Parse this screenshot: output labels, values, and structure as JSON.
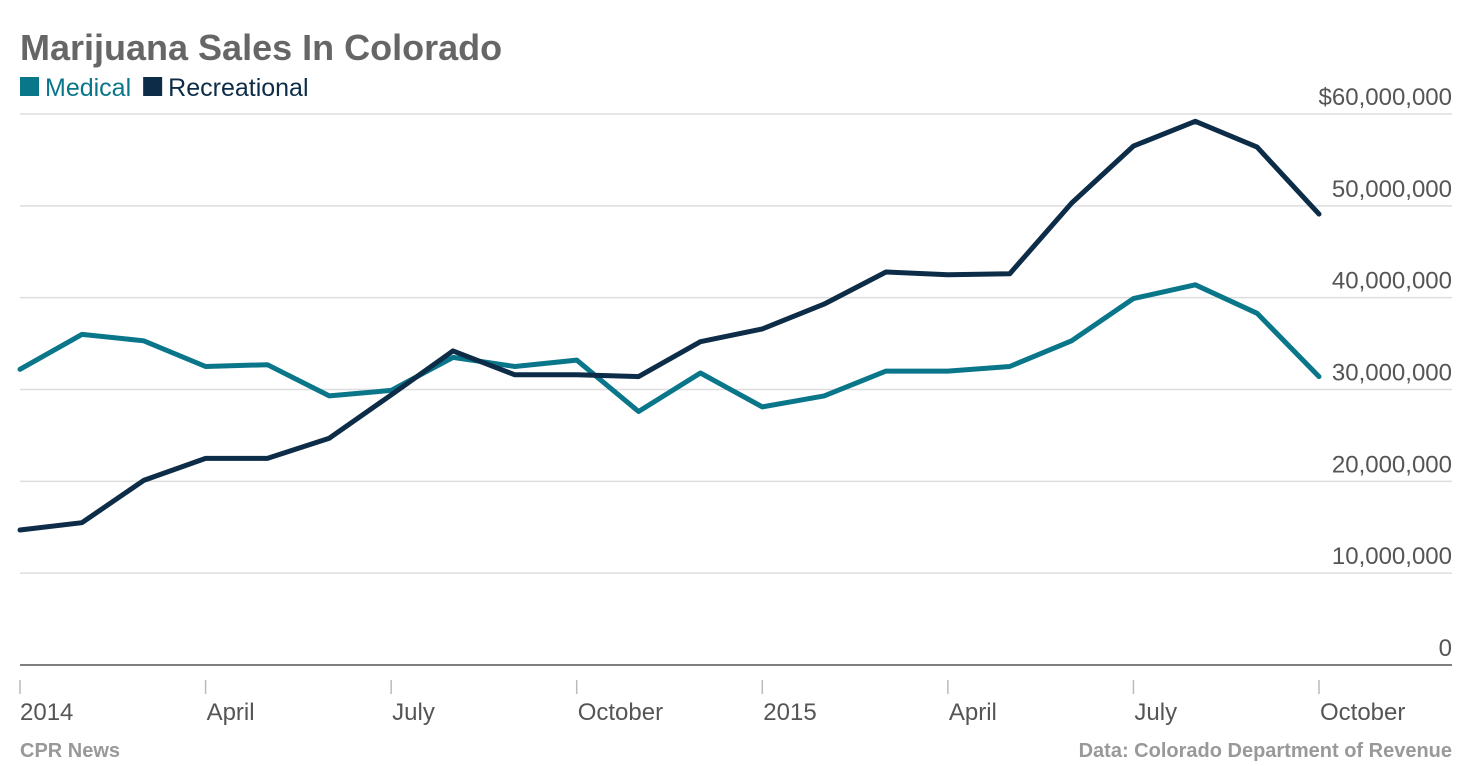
{
  "chart_data": {
    "type": "line",
    "title": "Marijuana Sales In Colorado",
    "source_left": "CPR News",
    "source_right": "Data: Colorado Department of Revenue",
    "xlabel": "",
    "ylabel": "",
    "x": [
      "2014-01",
      "2014-02",
      "2014-03",
      "2014-04",
      "2014-05",
      "2014-06",
      "2014-07",
      "2014-08",
      "2014-09",
      "2014-10",
      "2014-11",
      "2014-12",
      "2015-01",
      "2015-02",
      "2015-03",
      "2015-04",
      "2015-05",
      "2015-06",
      "2015-07",
      "2015-08",
      "2015-09",
      "2015-10"
    ],
    "x_ticks": [
      {
        "x": "2014-01",
        "label": "2014"
      },
      {
        "x": "2014-04",
        "label": "April"
      },
      {
        "x": "2014-07",
        "label": "July"
      },
      {
        "x": "2014-10",
        "label": "October"
      },
      {
        "x": "2015-01",
        "label": "2015"
      },
      {
        "x": "2015-04",
        "label": "April"
      },
      {
        "x": "2015-07",
        "label": "July"
      },
      {
        "x": "2015-10",
        "label": "October"
      }
    ],
    "y_ticks": [
      {
        "value": 0,
        "label": "0"
      },
      {
        "value": 10000000,
        "label": "10,000,000"
      },
      {
        "value": 20000000,
        "label": "20,000,000"
      },
      {
        "value": 30000000,
        "label": "30,000,000"
      },
      {
        "value": 40000000,
        "label": "40,000,000"
      },
      {
        "value": 50000000,
        "label": "50,000,000"
      },
      {
        "value": 60000000,
        "label": "$60,000,000"
      }
    ],
    "ylim": [
      0,
      60000000
    ],
    "grid": true,
    "legend_position": "top-left",
    "series": [
      {
        "name": "Medical",
        "color": "#09768a",
        "values": [
          32200000,
          36000000,
          35300000,
          32500000,
          32700000,
          29300000,
          29900000,
          33500000,
          32500000,
          33200000,
          27600000,
          31800000,
          28100000,
          29300000,
          32000000,
          32000000,
          32500000,
          35300000,
          39900000,
          41400000,
          38300000,
          31400000
        ]
      },
      {
        "name": "Recreational",
        "color": "#0c2c47",
        "values": [
          14700000,
          15500000,
          20100000,
          22500000,
          22500000,
          24700000,
          29400000,
          34200000,
          31600000,
          31600000,
          31400000,
          35200000,
          36600000,
          39300000,
          42800000,
          42500000,
          42600000,
          50300000,
          56500000,
          59200000,
          56400000,
          49100000
        ]
      }
    ]
  }
}
